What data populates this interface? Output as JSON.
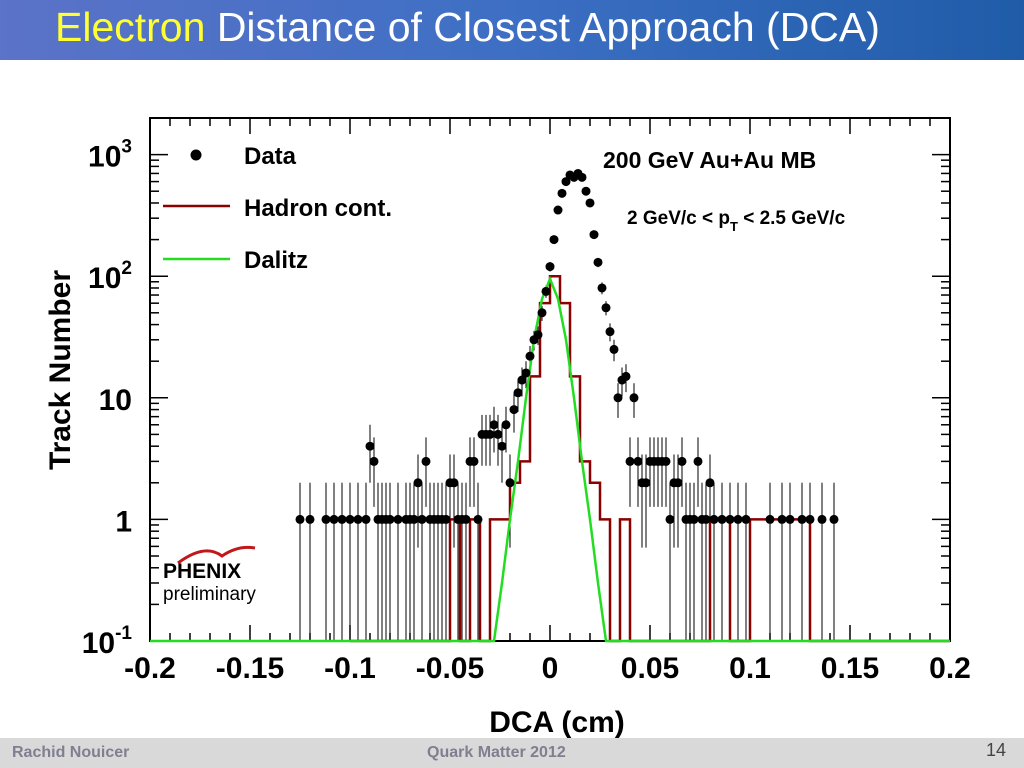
{
  "slide": {
    "title_accent": "Electron",
    "title_rest": " Distance of Closest Approach (DCA)",
    "footer_author": "Rachid Nouicer",
    "footer_conference": "Quark Matter 2012",
    "page_number": "14"
  },
  "colors": {
    "title_bar": "#3d6fc4",
    "title_accent": "#ffff33",
    "hadron": "#8b0000",
    "dalitz": "#22dd22",
    "data": "#000000"
  },
  "logo": {
    "name": "PHENIX",
    "sub": "preliminary"
  },
  "chart_data": {
    "type": "scatter",
    "xlabel": "DCA (cm)",
    "ylabel": "Track Number",
    "xlim": [
      -0.2,
      0.2
    ],
    "ylim": [
      0.1,
      2000
    ],
    "log_y": true,
    "grid": false,
    "legend_position": "top-left",
    "x_tick_labels": [
      "-0.2",
      "-0.15",
      "-0.1",
      "-0.05",
      "0",
      "0.05",
      "0.1",
      "0.15",
      "0.2"
    ],
    "x_ticks": [
      -0.2,
      -0.15,
      -0.1,
      -0.05,
      0,
      0.05,
      0.1,
      0.15,
      0.2
    ],
    "y_tick_labels": [
      {
        "value": 0.1,
        "base": "10",
        "exp": "-1"
      },
      {
        "value": 1,
        "base": "1",
        "exp": ""
      },
      {
        "value": 10,
        "base": "10",
        "exp": ""
      },
      {
        "value": 100,
        "base": "10",
        "exp": "2"
      },
      {
        "value": 1000,
        "base": "10",
        "exp": "3"
      }
    ],
    "annotations": [
      {
        "text": "200 GeV  Au+Au MB"
      },
      {
        "text_parts": [
          "2 GeV/c < p",
          "T",
          " < 2.5 GeV/c"
        ]
      }
    ],
    "series": [
      {
        "name": "Data",
        "style": "markers",
        "x": [
          -0.125,
          -0.12,
          -0.112,
          -0.108,
          -0.104,
          -0.1,
          -0.096,
          -0.092,
          -0.09,
          -0.088,
          -0.086,
          -0.084,
          -0.082,
          -0.08,
          -0.076,
          -0.072,
          -0.07,
          -0.068,
          -0.066,
          -0.064,
          -0.062,
          -0.06,
          -0.058,
          -0.056,
          -0.054,
          -0.052,
          -0.05,
          -0.048,
          -0.046,
          -0.044,
          -0.042,
          -0.04,
          -0.038,
          -0.036,
          -0.034,
          -0.032,
          -0.03,
          -0.028,
          -0.026,
          -0.024,
          -0.022,
          -0.02,
          -0.018,
          -0.016,
          -0.014,
          -0.012,
          -0.01,
          -0.008,
          -0.006,
          -0.004,
          -0.002,
          0,
          0.002,
          0.004,
          0.006,
          0.008,
          0.01,
          0.012,
          0.014,
          0.016,
          0.018,
          0.02,
          0.022,
          0.024,
          0.026,
          0.028,
          0.03,
          0.032,
          0.034,
          0.036,
          0.038,
          0.04,
          0.042,
          0.044,
          0.046,
          0.048,
          0.05,
          0.052,
          0.054,
          0.056,
          0.058,
          0.06,
          0.062,
          0.064,
          0.066,
          0.068,
          0.07,
          0.072,
          0.074,
          0.076,
          0.078,
          0.08,
          0.082,
          0.086,
          0.09,
          0.094,
          0.098,
          0.11,
          0.116,
          0.12,
          0.126,
          0.13,
          0.136,
          0.142
        ],
        "y": [
          1,
          1,
          1,
          1,
          1,
          1,
          1,
          1,
          4,
          3,
          1,
          1,
          1,
          1,
          1,
          1,
          1,
          1,
          2,
          1,
          3,
          1,
          1,
          1,
          1,
          1,
          2,
          2,
          1,
          1,
          1,
          3,
          3,
          1,
          5,
          5,
          5,
          6,
          5,
          4,
          6,
          2,
          8,
          11,
          14,
          16,
          22,
          30,
          33,
          50,
          75,
          120,
          200,
          350,
          480,
          600,
          680,
          650,
          700,
          650,
          500,
          400,
          220,
          130,
          80,
          55,
          35,
          25,
          10,
          14,
          15,
          3,
          10,
          3,
          2,
          2,
          3,
          3,
          3,
          3,
          3,
          1,
          2,
          2,
          3,
          1,
          1,
          1,
          3,
          1,
          1,
          2,
          1,
          1,
          1,
          1,
          1,
          1,
          1,
          1,
          1,
          1,
          1,
          1
        ]
      },
      {
        "name": "Hadron cont.",
        "style": "histogram",
        "x": [
          -0.1,
          -0.05,
          -0.045,
          -0.04,
          -0.035,
          -0.03,
          -0.025,
          -0.02,
          -0.015,
          -0.01,
          -0.005,
          0,
          0.005,
          0.01,
          0.015,
          0.02,
          0.025,
          0.03,
          0.035,
          0.04,
          0.08,
          0.09,
          0.1,
          0.13,
          0.2
        ],
        "y": [
          0.1,
          1,
          0.1,
          1,
          0.1,
          1,
          1,
          2,
          3,
          15,
          60,
          100,
          60,
          15,
          3,
          2,
          1,
          0.1,
          1,
          0.1,
          1,
          0.1,
          1,
          0.1,
          0.1
        ]
      },
      {
        "name": "Dalitz",
        "style": "line",
        "x": [
          -0.2,
          -0.028,
          -0.024,
          -0.02,
          -0.016,
          -0.012,
          -0.008,
          -0.004,
          0,
          0.004,
          0.008,
          0.012,
          0.016,
          0.02,
          0.024,
          0.028,
          0.2
        ],
        "y": [
          0.1,
          0.1,
          0.3,
          1,
          3,
          10,
          30,
          65,
          95,
          65,
          30,
          10,
          3,
          1,
          0.3,
          0.1,
          0.1
        ]
      }
    ]
  }
}
